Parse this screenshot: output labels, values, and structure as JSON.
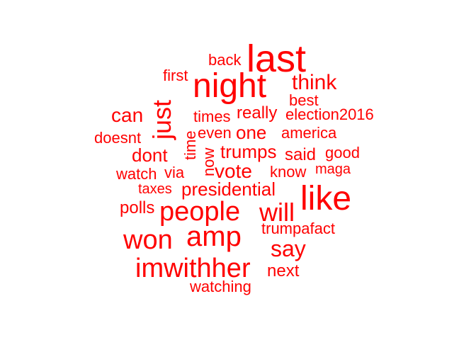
{
  "color": "#ff0000",
  "words": {
    "last": "last",
    "night": "night",
    "back": "back",
    "first": "first",
    "think": "think",
    "best": "best",
    "just": "just",
    "can": "can",
    "times": "times",
    "really": "really",
    "election2016": "election2016",
    "even": "even",
    "one": "one",
    "america": "america",
    "doesnt": "doesnt",
    "time": "time",
    "dont": "dont",
    "now": "now",
    "trumps": "trumps",
    "said": "said",
    "good": "good",
    "watch": "watch",
    "via": "via",
    "vote": "vote",
    "know": "know",
    "maga": "maga",
    "taxes": "taxes",
    "presidential": "presidential",
    "like": "like",
    "polls": "polls",
    "people": "people",
    "will": "will",
    "trumpafact": "trumpafact",
    "won": "won",
    "amp": "amp",
    "say": "say",
    "imwithher": "imwithher",
    "next": "next",
    "watching": "watching"
  }
}
